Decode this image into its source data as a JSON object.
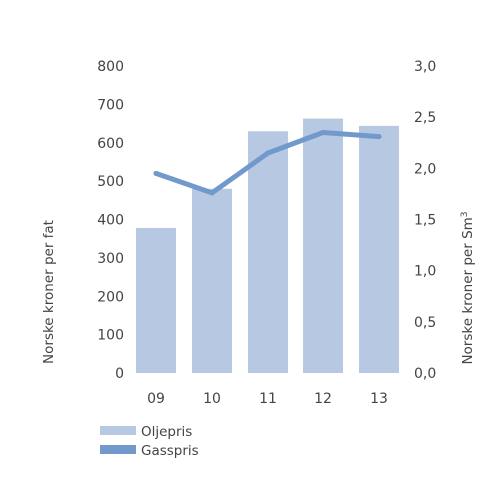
{
  "chart_data": {
    "type": "bar",
    "categories": [
      "09",
      "10",
      "11",
      "12",
      "13"
    ],
    "series": [
      {
        "name": "Oljepris",
        "type": "bar",
        "axis": "left",
        "values": [
          378,
          480,
          630,
          663,
          644
        ],
        "color": "#b7c9e2"
      },
      {
        "name": "Gasspris",
        "type": "line",
        "axis": "right",
        "values": [
          1.95,
          1.76,
          2.15,
          2.35,
          2.31
        ],
        "color": "#7299cb"
      }
    ],
    "ylabel_left": "Norske kroner per fat",
    "ylabel_right": "Norske kroner per Sm",
    "ylabel_right_superscript": "3",
    "ylim_left": [
      0,
      800
    ],
    "yticks_left": [
      "0",
      "100",
      "200",
      "300",
      "400",
      "500",
      "600",
      "700",
      "800"
    ],
    "ylim_right": [
      0,
      3
    ],
    "yticks_right": [
      "0,0",
      "0,5",
      "1,0",
      "1,5",
      "2,0",
      "2,5",
      "3,0"
    ],
    "grid": false,
    "legend_position": "bottom-left"
  }
}
